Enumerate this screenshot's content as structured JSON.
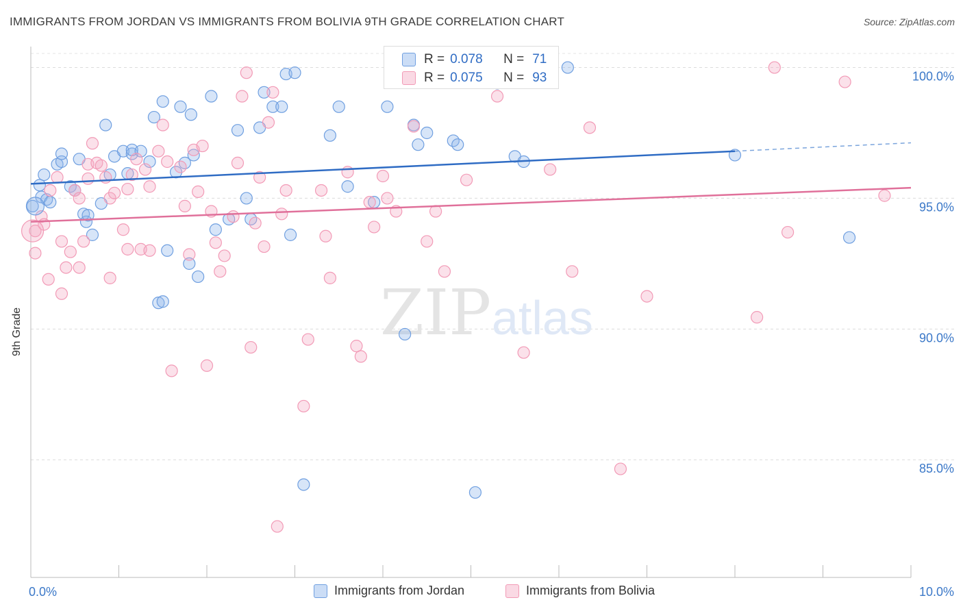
{
  "title": "IMMIGRANTS FROM JORDAN VS IMMIGRANTS FROM BOLIVIA 9TH GRADE CORRELATION CHART",
  "source": "Source: ZipAtlas.com",
  "watermark": {
    "zip": "ZIP",
    "atlas": "atlas"
  },
  "legend": {
    "r_label": "R =",
    "n_label": "N =",
    "rows": [
      {
        "r": "0.078",
        "n": "71",
        "color": "#6f9fe0"
      },
      {
        "r": "0.075",
        "n": "93",
        "color": "#f29ab6"
      }
    ]
  },
  "chart_data": {
    "type": "scatter",
    "title": "IMMIGRANTS FROM JORDAN VS IMMIGRANTS FROM BOLIVIA 9TH GRADE CORRELATION CHART",
    "xlabel": "",
    "ylabel": "9th Grade",
    "xlim": [
      0,
      10
    ],
    "ylim": [
      80.5,
      100.8
    ],
    "x_tick_labels": {
      "left": "0.0%",
      "right": "10.0%"
    },
    "y_ticks": [
      {
        "value": 100,
        "label": "100.0%"
      },
      {
        "value": 95,
        "label": "95.0%"
      },
      {
        "value": 90,
        "label": "90.0%"
      },
      {
        "value": 85,
        "label": "85.0%"
      }
    ],
    "grid": true,
    "legend_position": "top-center",
    "series": [
      {
        "name": "Immigrants from Jordan",
        "color": "#6f9fe0",
        "fill": "rgba(140,180,235,0.35)",
        "trend": {
          "x0": 0,
          "y0": 95.55,
          "x1": 8.0,
          "y1": 96.8,
          "x_dash_end": 10.0,
          "y_dash_end": 97.12
        },
        "points": [
          [
            0.02,
            94.7
          ],
          [
            0.1,
            95.5
          ],
          [
            0.12,
            95.05
          ],
          [
            0.15,
            95.9
          ],
          [
            0.18,
            94.95
          ],
          [
            0.22,
            94.85
          ],
          [
            0.3,
            96.3
          ],
          [
            0.35,
            96.4
          ],
          [
            0.35,
            96.7
          ],
          [
            0.45,
            95.45
          ],
          [
            0.5,
            95.3
          ],
          [
            0.55,
            96.5
          ],
          [
            0.6,
            94.4
          ],
          [
            0.63,
            94.1
          ],
          [
            0.65,
            94.35
          ],
          [
            0.7,
            93.6
          ],
          [
            0.85,
            97.8
          ],
          [
            0.9,
            95.9
          ],
          [
            0.95,
            96.6
          ],
          [
            1.05,
            96.8
          ],
          [
            1.1,
            95.95
          ],
          [
            1.15,
            96.7
          ],
          [
            1.15,
            96.85
          ],
          [
            1.25,
            96.8
          ],
          [
            1.35,
            96.4
          ],
          [
            1.4,
            98.1
          ],
          [
            1.5,
            98.7
          ],
          [
            1.55,
            93.0
          ],
          [
            1.65,
            96.0
          ],
          [
            1.7,
            98.5
          ],
          [
            1.75,
            96.35
          ],
          [
            1.8,
            92.5
          ],
          [
            1.82,
            98.2
          ],
          [
            1.85,
            96.65
          ],
          [
            1.9,
            92.0
          ],
          [
            2.1,
            93.8
          ],
          [
            2.25,
            94.2
          ],
          [
            2.35,
            97.6
          ],
          [
            2.45,
            95.0
          ],
          [
            2.5,
            94.2
          ],
          [
            2.6,
            97.7
          ],
          [
            2.65,
            99.05
          ],
          [
            2.75,
            98.5
          ],
          [
            2.85,
            98.5
          ],
          [
            2.9,
            99.75
          ],
          [
            2.95,
            93.6
          ],
          [
            3.0,
            99.8
          ],
          [
            3.1,
            84.05
          ],
          [
            3.4,
            97.4
          ],
          [
            3.5,
            98.5
          ],
          [
            3.6,
            95.45
          ],
          [
            3.9,
            94.85
          ],
          [
            4.05,
            98.5
          ],
          [
            4.25,
            89.8
          ],
          [
            4.35,
            97.8
          ],
          [
            4.4,
            97.05
          ],
          [
            4.5,
            97.5
          ],
          [
            4.65,
            100.0
          ],
          [
            4.8,
            97.2
          ],
          [
            4.85,
            97.05
          ],
          [
            5.05,
            83.75
          ],
          [
            5.3,
            99.4
          ],
          [
            5.5,
            96.6
          ],
          [
            5.6,
            96.4
          ],
          [
            6.1,
            100.0
          ],
          [
            1.45,
            91.0
          ],
          [
            1.5,
            91.05
          ],
          [
            0.8,
            94.8
          ],
          [
            8.0,
            96.65
          ],
          [
            9.3,
            93.5
          ],
          [
            2.05,
            98.9
          ]
        ]
      },
      {
        "name": "Immigrants from Bolivia",
        "color": "#f29ab6",
        "fill": "rgba(244,170,195,0.35)",
        "trend": {
          "x0": 0,
          "y0": 94.1,
          "x1": 10.0,
          "y1": 95.4
        },
        "points": [
          [
            0.05,
            93.75
          ],
          [
            0.05,
            92.9
          ],
          [
            0.12,
            94.3
          ],
          [
            0.15,
            94.0
          ],
          [
            0.2,
            91.9
          ],
          [
            0.22,
            95.3
          ],
          [
            0.3,
            95.8
          ],
          [
            0.35,
            91.35
          ],
          [
            0.35,
            93.35
          ],
          [
            0.4,
            92.35
          ],
          [
            0.45,
            92.95
          ],
          [
            0.5,
            95.3
          ],
          [
            0.55,
            92.35
          ],
          [
            0.55,
            95.0
          ],
          [
            0.6,
            93.35
          ],
          [
            0.65,
            95.75
          ],
          [
            0.65,
            96.3
          ],
          [
            0.7,
            97.1
          ],
          [
            0.75,
            96.35
          ],
          [
            0.8,
            96.25
          ],
          [
            0.85,
            95.8
          ],
          [
            0.9,
            95.0
          ],
          [
            0.9,
            91.95
          ],
          [
            0.95,
            95.2
          ],
          [
            1.05,
            93.8
          ],
          [
            1.1,
            93.05
          ],
          [
            1.1,
            95.35
          ],
          [
            1.15,
            95.9
          ],
          [
            1.2,
            96.5
          ],
          [
            1.25,
            93.05
          ],
          [
            1.3,
            96.1
          ],
          [
            1.35,
            95.45
          ],
          [
            1.35,
            93.0
          ],
          [
            1.45,
            96.8
          ],
          [
            1.5,
            97.8
          ],
          [
            1.55,
            96.4
          ],
          [
            1.6,
            88.4
          ],
          [
            1.7,
            96.2
          ],
          [
            1.75,
            94.7
          ],
          [
            1.8,
            92.85
          ],
          [
            1.85,
            96.85
          ],
          [
            1.9,
            95.25
          ],
          [
            1.95,
            97.0
          ],
          [
            2.0,
            88.6
          ],
          [
            2.05,
            94.5
          ],
          [
            2.1,
            93.3
          ],
          [
            2.15,
            92.2
          ],
          [
            2.2,
            92.8
          ],
          [
            2.3,
            94.3
          ],
          [
            2.35,
            96.35
          ],
          [
            2.4,
            98.9
          ],
          [
            2.45,
            99.8
          ],
          [
            2.5,
            89.3
          ],
          [
            2.55,
            94.05
          ],
          [
            2.6,
            95.8
          ],
          [
            2.65,
            93.15
          ],
          [
            2.7,
            97.9
          ],
          [
            2.75,
            99.05
          ],
          [
            2.8,
            82.45
          ],
          [
            2.85,
            94.4
          ],
          [
            2.9,
            95.3
          ],
          [
            3.1,
            87.05
          ],
          [
            3.15,
            89.6
          ],
          [
            3.3,
            95.3
          ],
          [
            3.35,
            93.55
          ],
          [
            3.4,
            91.95
          ],
          [
            3.6,
            96.0
          ],
          [
            3.7,
            89.35
          ],
          [
            3.75,
            88.95
          ],
          [
            3.85,
            94.85
          ],
          [
            3.9,
            93.9
          ],
          [
            4.0,
            95.85
          ],
          [
            4.05,
            95.0
          ],
          [
            4.15,
            94.5
          ],
          [
            4.3,
            100.0
          ],
          [
            4.35,
            97.75
          ],
          [
            4.5,
            93.35
          ],
          [
            4.6,
            94.5
          ],
          [
            4.7,
            92.2
          ],
          [
            4.95,
            95.7
          ],
          [
            5.3,
            98.9
          ],
          [
            5.45,
            100.0
          ],
          [
            5.6,
            89.1
          ],
          [
            5.9,
            96.1
          ],
          [
            6.15,
            92.2
          ],
          [
            6.35,
            97.7
          ],
          [
            6.7,
            84.65
          ],
          [
            7.0,
            91.25
          ],
          [
            8.25,
            90.45
          ],
          [
            8.6,
            93.7
          ],
          [
            9.25,
            99.45
          ],
          [
            8.45,
            100.0
          ],
          [
            9.7,
            95.1
          ]
        ]
      }
    ]
  }
}
